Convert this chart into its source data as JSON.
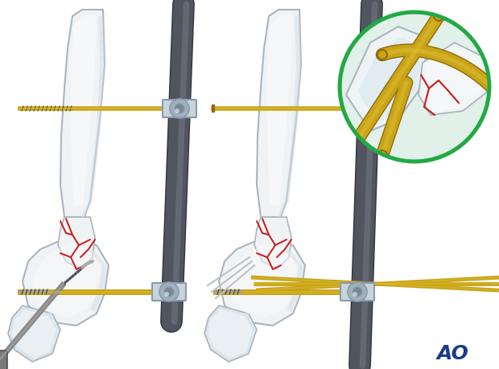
{
  "background_color": "#ffffff",
  "figure_width": 6.2,
  "figure_height": 4.59,
  "dpi": 100,
  "ao_text": "AO",
  "ao_color": "#1a3a8a",
  "ao_fontsize": 18,
  "bone_fill": "#f0f3f5",
  "bone_edge": "#aab5be",
  "bone_light": "#f8fafb",
  "bone_shadow": "#d5dde3",
  "bone_dark": "#c0cad2",
  "rod_color": "#505560",
  "rod_light": "#707580",
  "rod_dark": "#303540",
  "clamp_fill": "#c8d4dc",
  "clamp_dark": "#8a9aaa",
  "clamp_inner": "#a0b0bc",
  "gold_color": "#c8a418",
  "gold_light": "#e0bc30",
  "gold_dark": "#906c08",
  "red_color": "#cc1818",
  "green_circle": "#22aa44",
  "inset_bg": "#e2f0ea",
  "screw_color": "#909aaa",
  "drill_color": "#909090",
  "kwire_gray": "#c0c0c8"
}
